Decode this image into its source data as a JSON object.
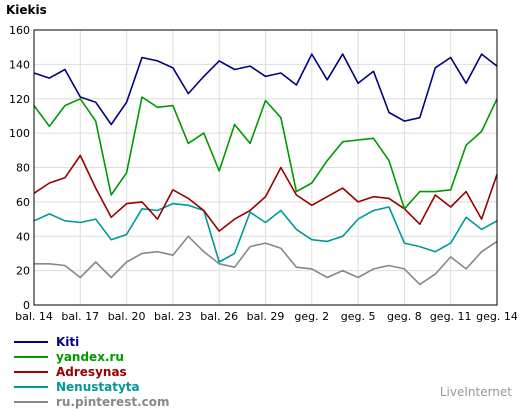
{
  "chart_data": {
    "type": "line",
    "title": "Kiekis",
    "xlabel": "",
    "ylabel": "",
    "ylim": [
      0,
      160
    ],
    "yticks": [
      0,
      20,
      40,
      60,
      80,
      100,
      120,
      140,
      160
    ],
    "grid": true,
    "legend_placement": "bottom-left",
    "categories": [
      "bal. 14",
      "bal. 15",
      "bal. 16",
      "bal. 17",
      "bal. 18",
      "bal. 19",
      "bal. 20",
      "bal. 21",
      "bal. 22",
      "bal. 23",
      "bal. 24",
      "bal. 25",
      "bal. 26",
      "bal. 27",
      "bal. 28",
      "bal. 29",
      "bal. 30",
      "geg. 1",
      "geg. 2",
      "geg. 3",
      "geg. 4",
      "geg. 5",
      "geg. 6",
      "geg. 7",
      "geg. 8",
      "geg. 9",
      "geg. 10",
      "geg. 11",
      "geg. 12",
      "geg. 13",
      "geg. 14"
    ],
    "xtick_labels": [
      "bal. 14",
      "bal. 17",
      "bal. 20",
      "bal. 23",
      "bal. 26",
      "bal. 29",
      "geg. 2",
      "geg. 5",
      "geg. 8",
      "geg. 11",
      "geg. 14"
    ],
    "series": [
      {
        "name": "Kiti",
        "color": "#000080",
        "values": [
          135,
          132,
          137,
          121,
          118,
          105,
          118,
          144,
          142,
          138,
          123,
          133,
          142,
          137,
          139,
          133,
          135,
          128,
          146,
          131,
          146,
          129,
          136,
          112,
          107,
          109,
          138,
          144,
          129,
          146,
          139
        ]
      },
      {
        "name": "yandex.ru",
        "color": "#009900",
        "values": [
          116,
          104,
          116,
          120,
          107,
          64,
          77,
          121,
          115,
          116,
          94,
          100,
          78,
          105,
          94,
          119,
          109,
          66,
          71,
          84,
          95,
          96,
          97,
          84,
          56,
          66,
          66,
          67,
          93,
          101,
          120
        ]
      },
      {
        "name": "Adresynas",
        "color": "#990000",
        "values": [
          65,
          71,
          74,
          87,
          68,
          51,
          59,
          60,
          50,
          67,
          62,
          55,
          43,
          50,
          55,
          63,
          80,
          64,
          58,
          63,
          68,
          60,
          63,
          62,
          56,
          47,
          64,
          57,
          66,
          50,
          76
        ]
      },
      {
        "name": "Nenustatyta",
        "color": "#009999",
        "values": [
          49,
          53,
          49,
          48,
          50,
          38,
          41,
          56,
          55,
          59,
          58,
          55,
          25,
          30,
          54,
          48,
          55,
          44,
          38,
          37,
          40,
          50,
          55,
          57,
          36,
          34,
          31,
          36,
          51,
          44,
          49
        ]
      },
      {
        "name": "ru.pinterest.com",
        "color": "#888888",
        "values": [
          24,
          24,
          23,
          16,
          25,
          16,
          25,
          30,
          31,
          29,
          40,
          31,
          24,
          22,
          34,
          36,
          33,
          22,
          21,
          16,
          20,
          16,
          21,
          23,
          21,
          12,
          18,
          28,
          21,
          31,
          37
        ]
      }
    ]
  },
  "watermark": "LiveInternet"
}
